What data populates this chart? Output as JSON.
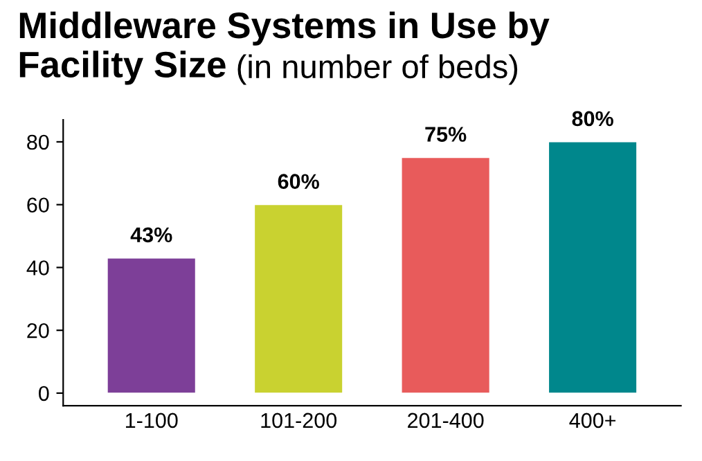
{
  "chart_data": {
    "type": "bar",
    "title": "Middleware Systems in Use by\nFacility Size",
    "subtitle": "(in number of beds)",
    "categories": [
      "1-100",
      "101-200",
      "201-400",
      "400+"
    ],
    "values": [
      43,
      60,
      75,
      80
    ],
    "colors": [
      "#7d3f98",
      "#c9d230",
      "#e85b5b",
      "#00878c"
    ],
    "value_labels": [
      "43%",
      "60%",
      "75%",
      "80%"
    ],
    "ylim": [
      -4,
      87
    ],
    "yticks": [
      0,
      20,
      40,
      60,
      80
    ],
    "grid": false
  }
}
